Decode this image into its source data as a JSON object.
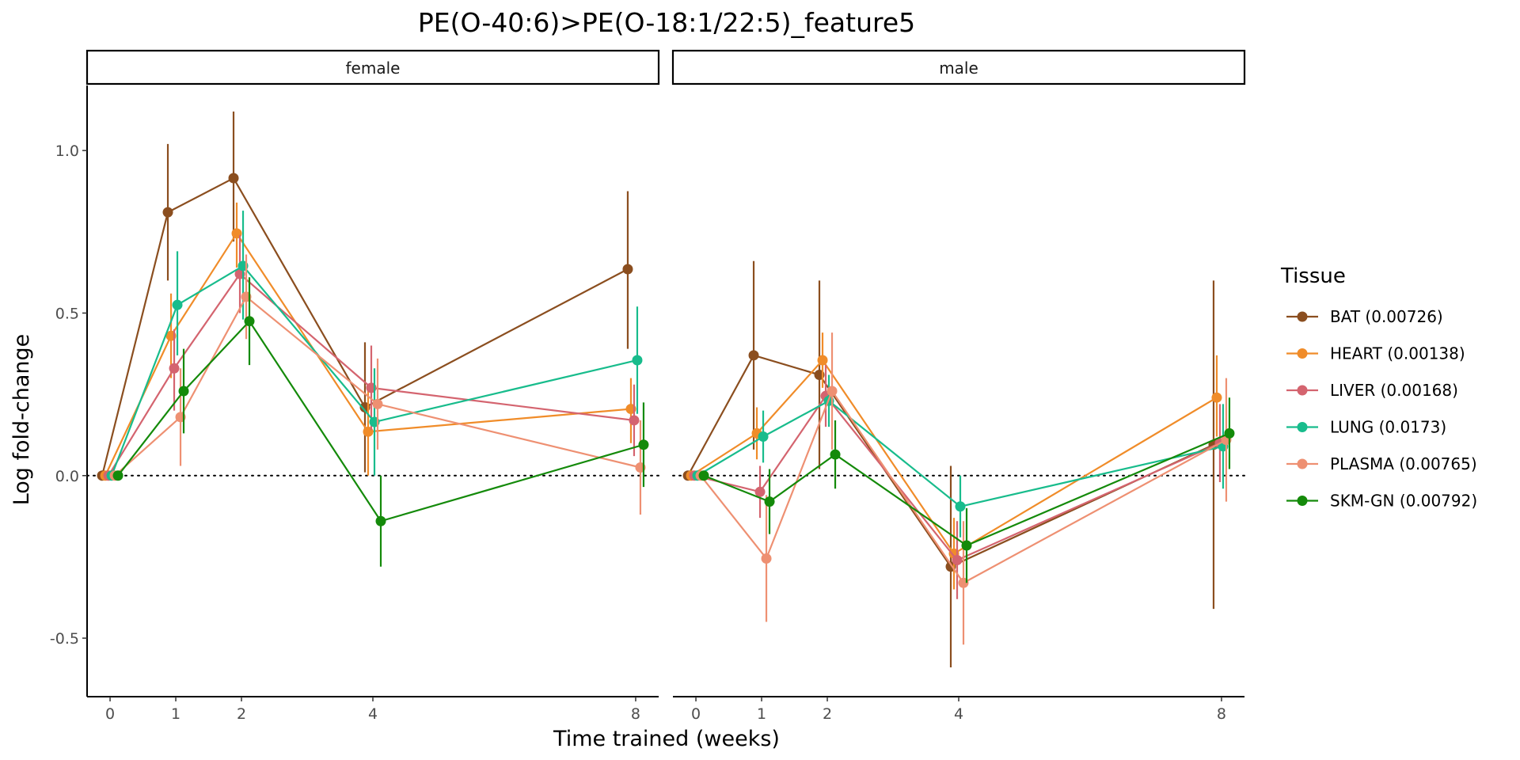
{
  "chart_data": {
    "type": "line",
    "title": "PE(O-40:6)>PE(O-18:1/22:5)_feature5",
    "xlabel": "Time trained (weeks)",
    "ylabel": "Log fold-change",
    "x_ticks": [
      0,
      1,
      2,
      4,
      8
    ],
    "y_ticks": [
      -0.5,
      0.0,
      0.5,
      1.0
    ],
    "y_tick_labels": [
      "-0.5",
      "0.0",
      "0.5",
      "1.0"
    ],
    "ylim": [
      -0.68,
      1.2
    ],
    "xlim": [
      -0.35,
      8.35
    ],
    "reference_line_y": 0,
    "grid": false,
    "legend": {
      "title": "Tissue",
      "position": "right"
    },
    "panels": [
      {
        "label": "female",
        "series": [
          {
            "name": "BAT (0.00726)",
            "color": "#8B4E1F",
            "points": [
              {
                "x": 0,
                "y": 0.0,
                "lo": 0.0,
                "hi": 0.0
              },
              {
                "x": 1,
                "y": 0.81,
                "lo": 0.6,
                "hi": 1.02
              },
              {
                "x": 2,
                "y": 0.915,
                "lo": 0.72,
                "hi": 1.12
              },
              {
                "x": 4,
                "y": 0.21,
                "lo": 0.01,
                "hi": 0.41
              },
              {
                "x": 8,
                "y": 0.635,
                "lo": 0.39,
                "hi": 0.875
              }
            ]
          },
          {
            "name": "HEART (0.00138)",
            "color": "#F08C29",
            "points": [
              {
                "x": 0,
                "y": 0.0,
                "lo": 0.0,
                "hi": 0.0
              },
              {
                "x": 1,
                "y": 0.43,
                "lo": 0.3,
                "hi": 0.56
              },
              {
                "x": 2,
                "y": 0.745,
                "lo": 0.64,
                "hi": 0.84
              },
              {
                "x": 4,
                "y": 0.135,
                "lo": 0.0,
                "hi": 0.27
              },
              {
                "x": 8,
                "y": 0.205,
                "lo": 0.1,
                "hi": 0.3
              }
            ]
          },
          {
            "name": "LIVER (0.00168)",
            "color": "#D4646F",
            "points": [
              {
                "x": 0,
                "y": 0.0,
                "lo": 0.0,
                "hi": 0.0
              },
              {
                "x": 1,
                "y": 0.33,
                "lo": 0.2,
                "hi": 0.45
              },
              {
                "x": 2,
                "y": 0.62,
                "lo": 0.5,
                "hi": 0.74
              },
              {
                "x": 4,
                "y": 0.27,
                "lo": 0.14,
                "hi": 0.4
              },
              {
                "x": 8,
                "y": 0.17,
                "lo": 0.06,
                "hi": 0.28
              }
            ]
          },
          {
            "name": "LUNG (0.0173)",
            "color": "#18BC8C",
            "points": [
              {
                "x": 0,
                "y": 0.0,
                "lo": 0.0,
                "hi": 0.0
              },
              {
                "x": 1,
                "y": 0.525,
                "lo": 0.37,
                "hi": 0.69
              },
              {
                "x": 2,
                "y": 0.645,
                "lo": 0.48,
                "hi": 0.815
              },
              {
                "x": 4,
                "y": 0.165,
                "lo": 0.0,
                "hi": 0.33
              },
              {
                "x": 8,
                "y": 0.355,
                "lo": 0.19,
                "hi": 0.52
              }
            ]
          },
          {
            "name": "PLASMA (0.00765)",
            "color": "#EE9072",
            "points": [
              {
                "x": 0,
                "y": 0.0,
                "lo": 0.0,
                "hi": 0.0
              },
              {
                "x": 1,
                "y": 0.18,
                "lo": 0.03,
                "hi": 0.33
              },
              {
                "x": 2,
                "y": 0.55,
                "lo": 0.42,
                "hi": 0.68
              },
              {
                "x": 4,
                "y": 0.22,
                "lo": 0.08,
                "hi": 0.36
              },
              {
                "x": 8,
                "y": 0.025,
                "lo": -0.12,
                "hi": 0.17
              }
            ]
          },
          {
            "name": "SKM-GN (0.00792)",
            "color": "#148A0A",
            "points": [
              {
                "x": 0,
                "y": 0.0,
                "lo": 0.0,
                "hi": 0.0
              },
              {
                "x": 1,
                "y": 0.26,
                "lo": 0.13,
                "hi": 0.39
              },
              {
                "x": 2,
                "y": 0.475,
                "lo": 0.34,
                "hi": 0.61
              },
              {
                "x": 4,
                "y": -0.14,
                "lo": -0.28,
                "hi": 0.0
              },
              {
                "x": 8,
                "y": 0.095,
                "lo": -0.035,
                "hi": 0.225
              }
            ]
          }
        ]
      },
      {
        "label": "male",
        "series": [
          {
            "name": "BAT (0.00726)",
            "color": "#8B4E1F",
            "points": [
              {
                "x": 0,
                "y": 0.0,
                "lo": 0.0,
                "hi": 0.0
              },
              {
                "x": 1,
                "y": 0.37,
                "lo": 0.08,
                "hi": 0.66
              },
              {
                "x": 2,
                "y": 0.31,
                "lo": 0.02,
                "hi": 0.6
              },
              {
                "x": 4,
                "y": -0.28,
                "lo": -0.59,
                "hi": 0.03
              },
              {
                "x": 8,
                "y": 0.095,
                "lo": -0.41,
                "hi": 0.6
              }
            ]
          },
          {
            "name": "HEART (0.00138)",
            "color": "#F08C29",
            "points": [
              {
                "x": 0,
                "y": 0.0,
                "lo": 0.0,
                "hi": 0.0
              },
              {
                "x": 1,
                "y": 0.13,
                "lo": 0.05,
                "hi": 0.21
              },
              {
                "x": 2,
                "y": 0.355,
                "lo": 0.27,
                "hi": 0.44
              },
              {
                "x": 4,
                "y": -0.24,
                "lo": -0.35,
                "hi": -0.13
              },
              {
                "x": 8,
                "y": 0.24,
                "lo": 0.12,
                "hi": 0.37
              }
            ]
          },
          {
            "name": "LIVER (0.00168)",
            "color": "#D4646F",
            "points": [
              {
                "x": 0,
                "y": 0.0,
                "lo": 0.0,
                "hi": 0.0
              },
              {
                "x": 1,
                "y": -0.05,
                "lo": -0.13,
                "hi": 0.03
              },
              {
                "x": 2,
                "y": 0.245,
                "lo": 0.15,
                "hi": 0.34
              },
              {
                "x": 4,
                "y": -0.26,
                "lo": -0.38,
                "hi": -0.14
              },
              {
                "x": 8,
                "y": 0.1,
                "lo": -0.02,
                "hi": 0.22
              }
            ]
          },
          {
            "name": "LUNG (0.0173)",
            "color": "#18BC8C",
            "points": [
              {
                "x": 0,
                "y": 0.0,
                "lo": 0.0,
                "hi": 0.0
              },
              {
                "x": 1,
                "y": 0.12,
                "lo": 0.04,
                "hi": 0.2
              },
              {
                "x": 2,
                "y": 0.23,
                "lo": 0.15,
                "hi": 0.31
              },
              {
                "x": 4,
                "y": -0.095,
                "lo": -0.19,
                "hi": 0.0
              },
              {
                "x": 8,
                "y": 0.09,
                "lo": -0.04,
                "hi": 0.22
              }
            ]
          },
          {
            "name": "PLASMA (0.00765)",
            "color": "#EE9072",
            "points": [
              {
                "x": 0,
                "y": 0.0,
                "lo": 0.0,
                "hi": 0.0
              },
              {
                "x": 1,
                "y": -0.255,
                "lo": -0.45,
                "hi": -0.06
              },
              {
                "x": 2,
                "y": 0.26,
                "lo": 0.08,
                "hi": 0.44
              },
              {
                "x": 4,
                "y": -0.33,
                "lo": -0.52,
                "hi": -0.14
              },
              {
                "x": 8,
                "y": 0.11,
                "lo": -0.08,
                "hi": 0.3
              }
            ]
          },
          {
            "name": "SKM-GN (0.00792)",
            "color": "#148A0A",
            "points": [
              {
                "x": 0,
                "y": 0.0,
                "lo": 0.0,
                "hi": 0.0
              },
              {
                "x": 1,
                "y": -0.08,
                "lo": -0.18,
                "hi": 0.02
              },
              {
                "x": 2,
                "y": 0.065,
                "lo": -0.04,
                "hi": 0.17
              },
              {
                "x": 4,
                "y": -0.215,
                "lo": -0.33,
                "hi": -0.1
              },
              {
                "x": 8,
                "y": 0.13,
                "lo": 0.02,
                "hi": 0.24
              }
            ]
          }
        ]
      }
    ]
  }
}
